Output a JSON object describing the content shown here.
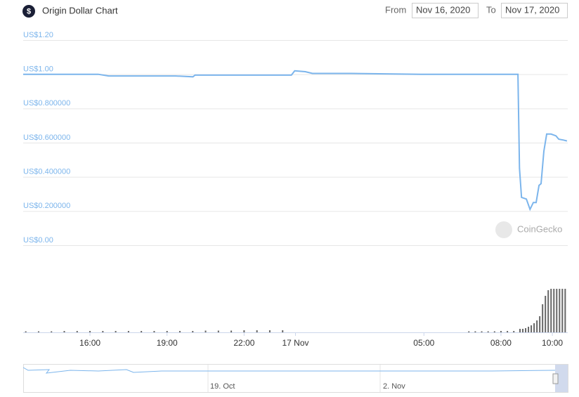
{
  "chart_data": {
    "type": "line",
    "title": "Origin Dollar Chart",
    "from_label": "From",
    "from_date": "Nov 16, 2020",
    "to_label": "To",
    "to_date": "Nov 17, 2020",
    "watermark": "CoinGecko",
    "xlim": [
      13.4,
      34.6
    ],
    "xticks": [
      {
        "value": 16,
        "label": "16:00"
      },
      {
        "value": 19,
        "label": "19:00"
      },
      {
        "value": 22,
        "label": "22:00"
      },
      {
        "value": 24,
        "label": "17 Nov"
      },
      {
        "value": 29,
        "label": "05:00"
      },
      {
        "value": 32,
        "label": "08:00"
      },
      {
        "value": 34,
        "label": "10:00"
      }
    ],
    "ylim": [
      0,
      1.2
    ],
    "yticks": [
      {
        "value": 0,
        "label": "US$0.00"
      },
      {
        "value": 0.2,
        "label": "US$0.200000"
      },
      {
        "value": 0.4,
        "label": "US$0.400000"
      },
      {
        "value": 0.6,
        "label": "US$0.600000"
      },
      {
        "value": 0.8,
        "label": "US$0.800000"
      },
      {
        "value": 1,
        "label": "US$1.00"
      },
      {
        "value": 1.2,
        "label": "US$1.20"
      }
    ],
    "grid": true,
    "series": [
      {
        "color": "#7cb5ec",
        "x": [
          13.4,
          15.23,
          16.32,
          16.73,
          17.96,
          19.33,
          20.01,
          20.09,
          22.06,
          23.84,
          23.97,
          24.38,
          24.66,
          26.16,
          28.89,
          31.62,
          32.66,
          32.72,
          32.8,
          32.99,
          33.13,
          33.26,
          33.37,
          33.48,
          33.56,
          33.67,
          33.78,
          33.95,
          34.14,
          34.25,
          34.43,
          34.57
        ],
        "values": [
          1.0,
          1.0,
          1.0,
          0.99,
          0.99,
          0.99,
          0.985,
          0.995,
          0.995,
          0.995,
          1.02,
          1.015,
          1.005,
          1.005,
          1.0,
          1.0,
          1.0,
          0.45,
          0.28,
          0.27,
          0.21,
          0.25,
          0.25,
          0.35,
          0.36,
          0.55,
          0.65,
          0.65,
          0.64,
          0.62,
          0.615,
          0.61
        ]
      }
    ],
    "volume": {
      "color": "#666666",
      "ylim": [
        0,
        65
      ],
      "x": [
        13.5,
        14,
        14.5,
        15,
        15.5,
        16,
        16.5,
        17,
        17.5,
        18,
        18.5,
        19,
        19.5,
        20,
        20.5,
        21,
        21.5,
        22,
        22.5,
        23,
        23.5,
        30.75,
        31,
        31.25,
        31.5,
        31.75,
        32,
        32.25,
        32.5,
        32.74,
        32.85,
        32.96,
        33.07,
        33.18,
        33.29,
        33.4,
        33.51,
        33.62,
        33.73,
        33.84,
        33.95,
        34.06,
        34.17,
        34.28,
        34.39,
        34.5
      ],
      "values": [
        1.5,
        1.5,
        1.5,
        2,
        2,
        2,
        2,
        2,
        2,
        2,
        2,
        2,
        2,
        2,
        2.5,
        2.5,
        2.5,
        3,
        3,
        3,
        3,
        1.5,
        1.5,
        1.5,
        1.5,
        1.5,
        2,
        2,
        2,
        5,
        5,
        6,
        8,
        10,
        13,
        17,
        23,
        40,
        52,
        60,
        62,
        62,
        62,
        62,
        62,
        62
      ]
    },
    "navigator_labels": [
      "19. Oct",
      "2. Nov"
    ]
  }
}
